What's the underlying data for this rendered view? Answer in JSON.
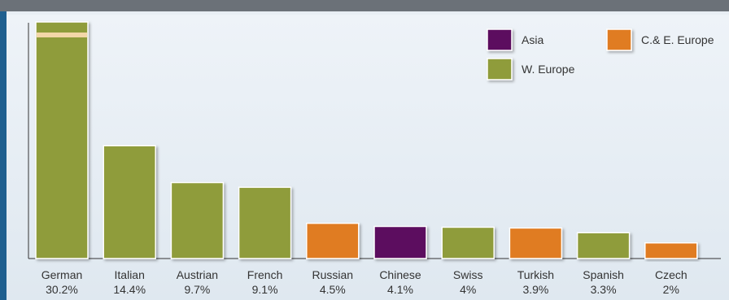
{
  "chart_data": {
    "type": "bar",
    "title": "",
    "xlabel": "",
    "ylabel": "",
    "ylim": [
      0,
      30.2
    ],
    "grid": false,
    "legend_placement": "top-right",
    "categories": [
      "German",
      "Italian",
      "Austrian",
      "French",
      "Russian",
      "Chinese",
      "Swiss",
      "Turkish",
      "Spanish",
      "Czech"
    ],
    "values": [
      30.2,
      14.4,
      9.7,
      9.1,
      4.5,
      4.1,
      4,
      3.9,
      3.3,
      2
    ],
    "value_labels": [
      "30.2%",
      "14.4%",
      "9.7%",
      "9.1%",
      "4.5%",
      "4.1%",
      "4%",
      "3.9%",
      "3.3%",
      "2%"
    ],
    "regions": [
      "W. Europe",
      "W. Europe",
      "W. Europe",
      "W. Europe",
      "C.& E. Europe",
      "Asia",
      "W. Europe",
      "C.& E. Europe",
      "W. Europe",
      "C.& E. Europe"
    ],
    "legend": [
      {
        "name": "Asia",
        "color": "#5b0a5e"
      },
      {
        "name": "C.& E. Europe",
        "color": "#e07b20"
      },
      {
        "name": "W. Europe",
        "color": "#8f9c3b"
      }
    ]
  }
}
